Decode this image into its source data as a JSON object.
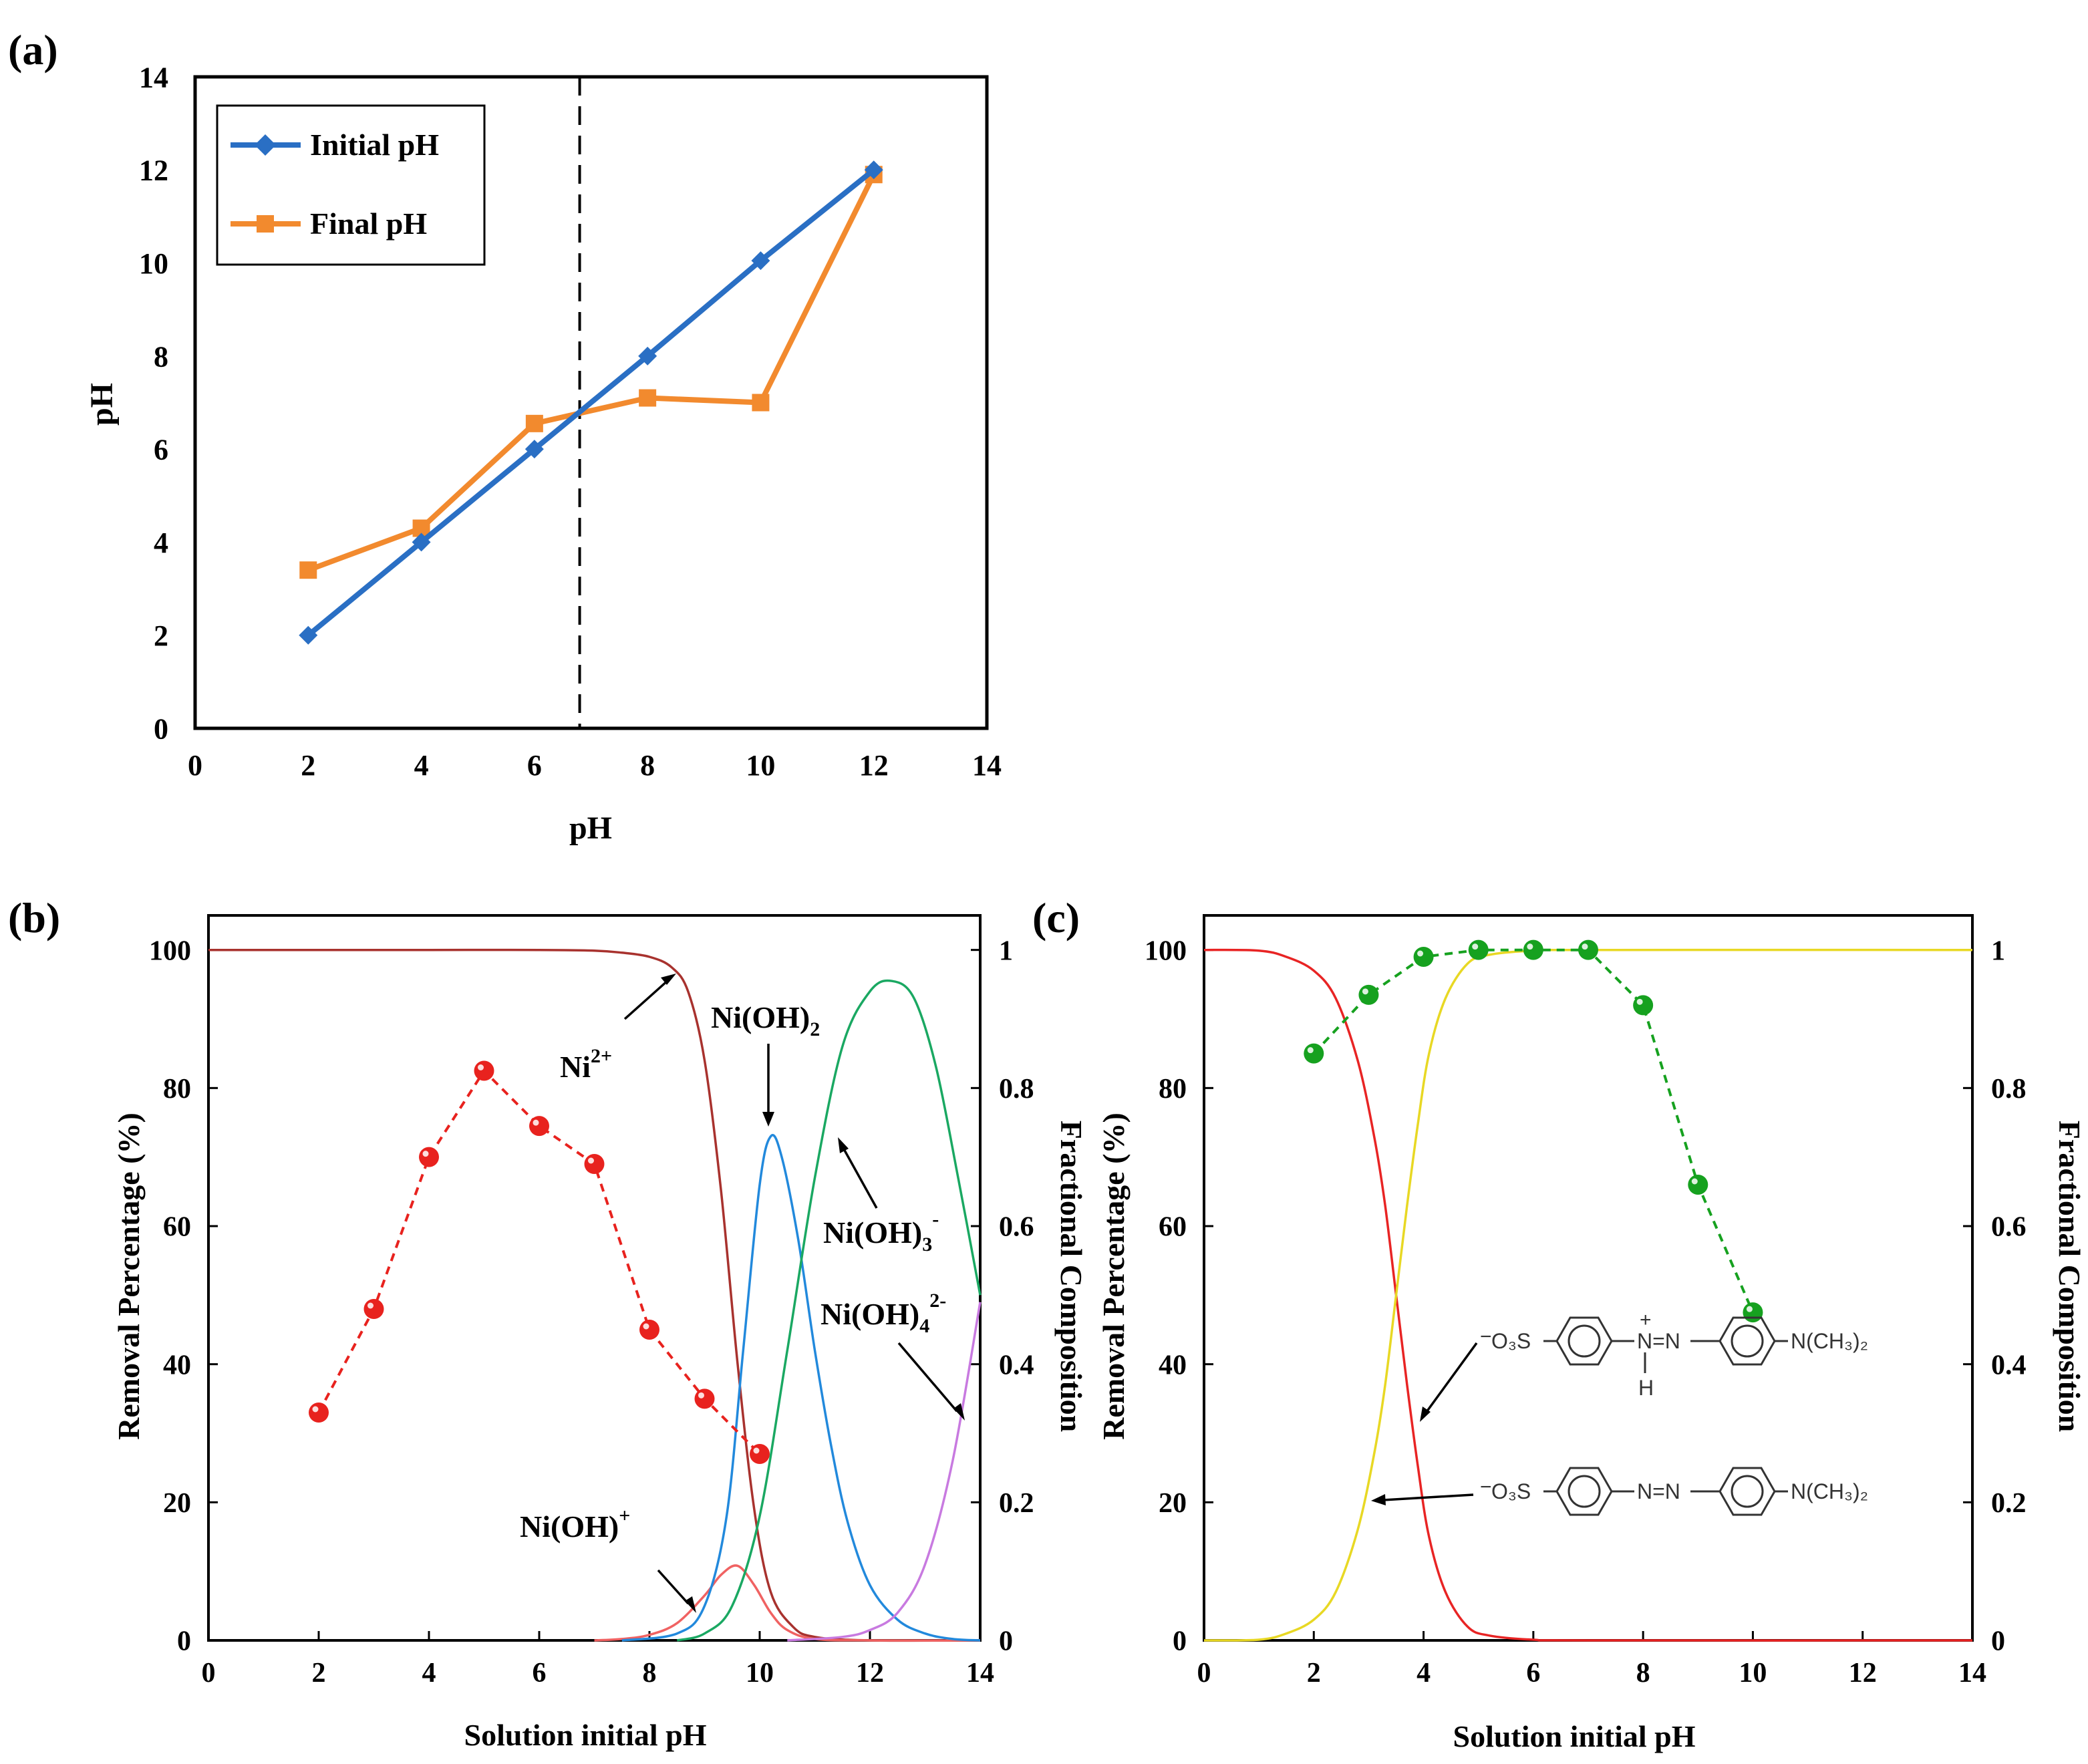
{
  "chart_data": [
    {
      "panel_label": "(a)",
      "type": "line",
      "xlabel": "pH",
      "ylabel": "pH",
      "xlim": [
        0,
        14
      ],
      "ylim": [
        0,
        14
      ],
      "xticks": [
        0,
        2,
        4,
        6,
        8,
        10,
        12,
        14
      ],
      "yticks": [
        0,
        2,
        4,
        6,
        8,
        10,
        12,
        14
      ],
      "legend_position": "top-left",
      "vline_x": 6.8,
      "series": [
        {
          "name": "Initial pH",
          "color": "#2a6fc4",
          "marker": "diamond",
          "x": [
            2,
            4,
            6,
            8,
            10,
            12
          ],
          "y": [
            2,
            4,
            6,
            8,
            10.05,
            12
          ]
        },
        {
          "name": "Final pH",
          "color": "#f28a2e",
          "marker": "square",
          "x": [
            2,
            4,
            6,
            8,
            10,
            12
          ],
          "y": [
            3.4,
            4.3,
            6.55,
            7.1,
            7.0,
            11.9
          ]
        }
      ]
    },
    {
      "panel_label": "(b)",
      "type": "line",
      "xlabel": "Solution initial pH",
      "ylabel": "Removal Percentage (%)",
      "ylabel_right": "Fractional Composition",
      "xlim": [
        0,
        14
      ],
      "ylim": [
        0,
        105
      ],
      "ylim_right": [
        0,
        1.05
      ],
      "xticks": [
        0,
        2,
        4,
        6,
        8,
        10,
        12,
        14
      ],
      "yticks": [
        0,
        20,
        40,
        60,
        80,
        100
      ],
      "yticks_right": [
        "0",
        "0.2",
        "0.4",
        "0.6",
        "0.8",
        "1"
      ],
      "removal": {
        "color": "#e8221e",
        "x": [
          2,
          3,
          4,
          5,
          6,
          7,
          8,
          9,
          10
        ],
        "y": [
          33,
          48,
          70,
          82.5,
          74.5,
          69,
          45,
          35,
          27
        ]
      },
      "species": [
        {
          "name": "Ni2+",
          "color": "#a8322e",
          "x": [
            0,
            2,
            4,
            6,
            7,
            7.5,
            8,
            8.4,
            8.7,
            9.0,
            9.3,
            9.6,
            9.9,
            10.2,
            10.6,
            11,
            12,
            14
          ],
          "y": [
            1,
            1,
            1,
            1,
            0.999,
            0.996,
            0.99,
            0.975,
            0.94,
            0.84,
            0.65,
            0.4,
            0.19,
            0.07,
            0.02,
            0.005,
            0,
            0
          ]
        },
        {
          "name": "Ni(OH)+",
          "color": "#f06262",
          "x": [
            7,
            7.5,
            8,
            8.5,
            9.0,
            9.3,
            9.6,
            9.9,
            10.2,
            10.5,
            11,
            12,
            14
          ],
          "y": [
            0,
            0.002,
            0.008,
            0.025,
            0.065,
            0.095,
            0.108,
            0.08,
            0.04,
            0.015,
            0.002,
            0,
            0
          ]
        },
        {
          "name": "Ni(OH)2",
          "color": "#2289dc",
          "x": [
            7.5,
            8.5,
            9.0,
            9.4,
            9.7,
            10.0,
            10.2,
            10.4,
            10.7,
            11.0,
            11.3,
            11.6,
            12.0,
            12.5,
            13,
            13.5,
            14
          ],
          "y": [
            0,
            0.01,
            0.05,
            0.18,
            0.42,
            0.66,
            0.73,
            0.7,
            0.58,
            0.42,
            0.28,
            0.17,
            0.08,
            0.03,
            0.01,
            0.002,
            0
          ]
        },
        {
          "name": "Ni(OH)3-",
          "color": "#1aa862",
          "x": [
            8.5,
            9.0,
            9.5,
            10.0,
            10.5,
            11.0,
            11.5,
            12.0,
            12.4,
            12.8,
            13.2,
            13.6,
            14
          ],
          "y": [
            0,
            0.01,
            0.05,
            0.18,
            0.42,
            0.67,
            0.86,
            0.94,
            0.955,
            0.93,
            0.83,
            0.67,
            0.5
          ]
        },
        {
          "name": "Ni(OH)42-",
          "color": "#c87ae0",
          "x": [
            10.5,
            11.5,
            12.0,
            12.5,
            13.0,
            13.5,
            14
          ],
          "y": [
            0,
            0.005,
            0.015,
            0.04,
            0.11,
            0.26,
            0.49
          ]
        }
      ],
      "annotations": {
        "ni2": "Ni",
        "ni2_sup": "2+",
        "nioh": "Ni(OH)",
        "nioh_sup": "+",
        "nioh2": "Ni(OH)",
        "nioh2_sub": "2",
        "nioh3": "Ni(OH)",
        "nioh3_sub": "3",
        "nioh3_sup": "-",
        "nioh4": "Ni(OH)",
        "nioh4_sub": "4",
        "nioh4_sup": "2-"
      }
    },
    {
      "panel_label": "(c)",
      "type": "line",
      "xlabel": "Solution initial pH",
      "ylabel": "Removal Percentage (%)",
      "ylabel_right": "Fractional Composition",
      "xlim": [
        0,
        14
      ],
      "ylim": [
        0,
        105
      ],
      "ylim_right": [
        0,
        1.05
      ],
      "xticks": [
        0,
        2,
        4,
        6,
        8,
        10,
        12,
        14
      ],
      "yticks": [
        0,
        20,
        40,
        60,
        80,
        100
      ],
      "yticks_right": [
        "0",
        "0.2",
        "0.4",
        "0.6",
        "0.8",
        "1"
      ],
      "removal": {
        "color": "#16a11f",
        "x": [
          2,
          3,
          4,
          5,
          6,
          7,
          8,
          9,
          10
        ],
        "y": [
          85,
          93.5,
          99,
          100,
          100,
          100,
          92,
          66,
          47.5
        ]
      },
      "species": [
        {
          "name": "protonated",
          "color": "#e82424",
          "x": [
            0,
            1,
            1.5,
            2.0,
            2.4,
            2.8,
            3.1,
            3.3,
            3.5,
            3.7,
            3.9,
            4.1,
            4.4,
            4.8,
            5.2,
            6,
            7,
            14
          ],
          "y": [
            1,
            0.999,
            0.99,
            0.97,
            0.93,
            0.84,
            0.73,
            0.63,
            0.5,
            0.37,
            0.25,
            0.15,
            0.07,
            0.02,
            0.007,
            0.001,
            0,
            0
          ]
        },
        {
          "name": "deprotonated",
          "color": "#e8d824",
          "x": [
            0,
            1,
            1.5,
            2.0,
            2.4,
            2.8,
            3.1,
            3.3,
            3.5,
            3.7,
            3.9,
            4.1,
            4.4,
            4.8,
            5.2,
            6,
            7,
            14
          ],
          "y": [
            0,
            0.001,
            0.01,
            0.03,
            0.07,
            0.16,
            0.27,
            0.37,
            0.5,
            0.63,
            0.75,
            0.85,
            0.93,
            0.98,
            0.993,
            0.999,
            1,
            1
          ]
        }
      ],
      "structures": {
        "top": {
          "left": "O₃S",
          "charge_minus": "−",
          "mid": "N=N",
          "plus": "+",
          "h": "H",
          "right": "N(CH₃)₂"
        },
        "bottom": {
          "left": "O₃S",
          "charge_minus": "−",
          "mid": "N=N",
          "right": "N(CH₃)₂"
        }
      }
    }
  ]
}
